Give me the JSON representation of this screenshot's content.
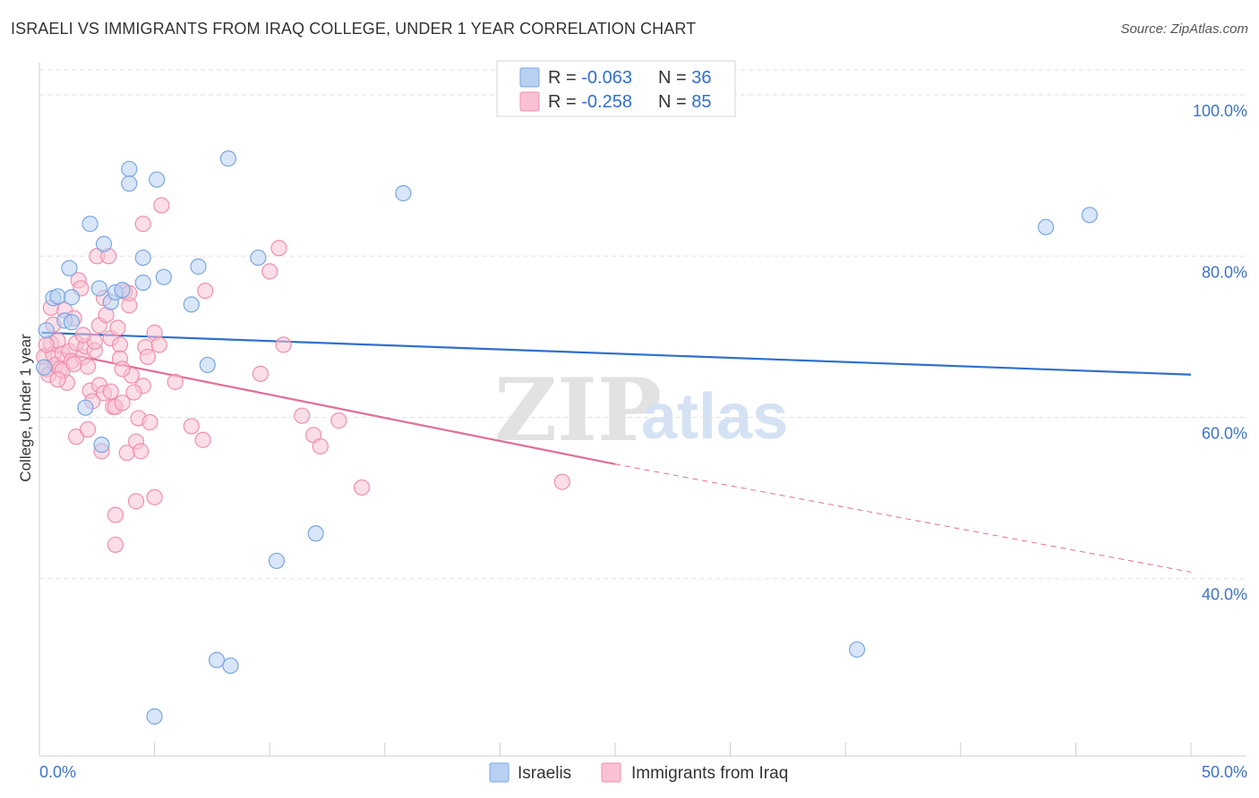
{
  "title": "ISRAELI VS IMMIGRANTS FROM IRAQ COLLEGE, UNDER 1 YEAR CORRELATION CHART",
  "source": "Source: ZipAtlas.com",
  "watermark": {
    "zip": "ZIP",
    "atlas": "atlas"
  },
  "colors": {
    "israelis_fill": "#b8d1f3",
    "israelis_stroke": "#7aa6e0",
    "israelis_line": "#2f6fce",
    "iraq_fill": "#f9c2d3",
    "iraq_stroke": "#ef8fae",
    "iraq_line": "#e06d98",
    "tick_text": "#3d72c9",
    "grid": "#e2e2e2"
  },
  "legend": {
    "rows": [
      {
        "r_label": "R = ",
        "r_value": "-0.063",
        "n_label": "N = ",
        "n_value": "36",
        "series": "israelis"
      },
      {
        "r_label": "R = ",
        "r_value": "-0.258",
        "n_label": "N = ",
        "n_value": "85",
        "series": "iraq"
      }
    ]
  },
  "chart_data": {
    "type": "scatter",
    "title": "ISRAELI VS IMMIGRANTS FROM IRAQ COLLEGE, UNDER 1 YEAR CORRELATION CHART",
    "xlabel": "",
    "ylabel": "College, Under 1 year",
    "xlim": [
      0,
      50
    ],
    "ylim": [
      18,
      104
    ],
    "x_tick_labels": [
      "0.0%",
      "50.0%"
    ],
    "y_ticks": [
      40,
      60,
      80,
      100
    ],
    "y_tick_labels": [
      "40.0%",
      "60.0%",
      "80.0%",
      "100.0%"
    ],
    "grid": true,
    "legend_position": "bottom",
    "series": [
      {
        "name": "Israelis",
        "key": "israelis",
        "trend": {
          "x": [
            0.1,
            50.0
          ],
          "y": [
            70.5,
            65.3
          ],
          "dashed_from_x": null
        },
        "points": [
          [
            0.2,
            66.2
          ],
          [
            0.3,
            70.8
          ],
          [
            0.6,
            74.8
          ],
          [
            0.8,
            75.0
          ],
          [
            1.1,
            72.0
          ],
          [
            1.3,
            78.5
          ],
          [
            1.4,
            71.8
          ],
          [
            1.4,
            74.9
          ],
          [
            2.0,
            61.2
          ],
          [
            2.2,
            84.0
          ],
          [
            2.6,
            76.0
          ],
          [
            2.7,
            56.6
          ],
          [
            2.8,
            81.5
          ],
          [
            3.1,
            74.3
          ],
          [
            3.3,
            75.5
          ],
          [
            3.6,
            75.8
          ],
          [
            3.9,
            90.8
          ],
          [
            3.9,
            89.0
          ],
          [
            4.5,
            79.8
          ],
          [
            4.5,
            76.7
          ],
          [
            5.1,
            89.5
          ],
          [
            5.4,
            77.4
          ],
          [
            6.6,
            74.0
          ],
          [
            6.9,
            78.7
          ],
          [
            7.3,
            66.5
          ],
          [
            8.2,
            92.1
          ],
          [
            9.5,
            79.8
          ],
          [
            10.3,
            42.2
          ],
          [
            12.0,
            45.6
          ],
          [
            15.8,
            87.8
          ],
          [
            7.7,
            29.9
          ],
          [
            8.3,
            29.2
          ],
          [
            5.0,
            22.9
          ],
          [
            35.5,
            31.2
          ],
          [
            43.7,
            83.6
          ],
          [
            45.6,
            85.1
          ]
        ]
      },
      {
        "name": "Immigrants from Iraq",
        "key": "iraq",
        "trend": {
          "x": [
            0.1,
            25.0,
            50.0
          ],
          "y": [
            68.5,
            54.2,
            40.8
          ],
          "dashed_from_x": 25.0
        },
        "points": [
          [
            0.2,
            67.5
          ],
          [
            0.3,
            66.0
          ],
          [
            0.4,
            65.3
          ],
          [
            0.5,
            73.6
          ],
          [
            0.5,
            69.2
          ],
          [
            0.6,
            67.8
          ],
          [
            0.7,
            66.5
          ],
          [
            0.8,
            69.5
          ],
          [
            0.9,
            66.0
          ],
          [
            1.0,
            67.9
          ],
          [
            1.1,
            73.3
          ],
          [
            1.2,
            64.3
          ],
          [
            1.3,
            68.2
          ],
          [
            1.4,
            67.0
          ],
          [
            1.5,
            72.3
          ],
          [
            1.6,
            69.2
          ],
          [
            1.6,
            57.6
          ],
          [
            1.7,
            77.0
          ],
          [
            1.8,
            76.0
          ],
          [
            1.9,
            67.5
          ],
          [
            2.0,
            68.8
          ],
          [
            2.1,
            66.3
          ],
          [
            2.1,
            58.5
          ],
          [
            2.2,
            63.3
          ],
          [
            2.3,
            62.0
          ],
          [
            2.4,
            68.3
          ],
          [
            2.5,
            80.0
          ],
          [
            2.6,
            71.4
          ],
          [
            2.6,
            64.0
          ],
          [
            2.7,
            55.8
          ],
          [
            2.8,
            74.8
          ],
          [
            2.8,
            63.0
          ],
          [
            2.9,
            72.7
          ],
          [
            3.0,
            80.0
          ],
          [
            3.1,
            69.8
          ],
          [
            3.1,
            63.2
          ],
          [
            3.2,
            61.3
          ],
          [
            3.3,
            61.3
          ],
          [
            3.3,
            47.9
          ],
          [
            3.3,
            44.2
          ],
          [
            3.4,
            71.1
          ],
          [
            3.5,
            69.0
          ],
          [
            3.5,
            67.3
          ],
          [
            3.6,
            61.8
          ],
          [
            3.7,
            75.6
          ],
          [
            3.8,
            55.6
          ],
          [
            3.9,
            73.9
          ],
          [
            3.9,
            75.4
          ],
          [
            4.0,
            65.2
          ],
          [
            4.2,
            57.0
          ],
          [
            4.2,
            49.6
          ],
          [
            4.3,
            59.9
          ],
          [
            4.4,
            55.8
          ],
          [
            4.5,
            63.9
          ],
          [
            4.5,
            84.0
          ],
          [
            4.6,
            68.7
          ],
          [
            4.7,
            67.5
          ],
          [
            4.8,
            59.4
          ],
          [
            5.0,
            70.5
          ],
          [
            5.0,
            50.1
          ],
          [
            5.2,
            69.0
          ],
          [
            5.3,
            86.3
          ],
          [
            5.9,
            64.4
          ],
          [
            6.6,
            58.9
          ],
          [
            7.1,
            57.2
          ],
          [
            7.2,
            75.7
          ],
          [
            9.6,
            65.4
          ],
          [
            10.0,
            78.1
          ],
          [
            10.4,
            81.0
          ],
          [
            10.6,
            69.0
          ],
          [
            11.4,
            60.2
          ],
          [
            11.9,
            57.8
          ],
          [
            12.2,
            56.4
          ],
          [
            13.0,
            59.6
          ],
          [
            14.0,
            51.3
          ],
          [
            22.7,
            52.0
          ],
          [
            0.3,
            69.0
          ],
          [
            0.6,
            71.5
          ],
          [
            1.0,
            65.8
          ],
          [
            1.5,
            66.6
          ],
          [
            2.4,
            69.4
          ],
          [
            3.6,
            66.0
          ],
          [
            4.1,
            63.1
          ],
          [
            1.9,
            70.2
          ],
          [
            0.8,
            64.7
          ]
        ]
      }
    ]
  },
  "bottom_legend": [
    {
      "label": "Israelis",
      "series": "israelis"
    },
    {
      "label": "Immigrants from Iraq",
      "series": "iraq"
    }
  ]
}
